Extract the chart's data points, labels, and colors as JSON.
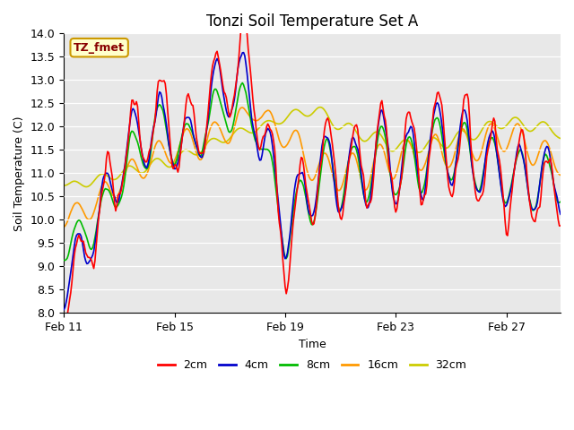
{
  "title": "Tonzi Soil Temperature Set A",
  "xlabel": "Time",
  "ylabel": "Soil Temperature (C)",
  "ylim": [
    8.0,
    14.0
  ],
  "yticks": [
    8.0,
    8.5,
    9.0,
    9.5,
    10.0,
    10.5,
    11.0,
    11.5,
    12.0,
    12.5,
    13.0,
    13.5,
    14.0
  ],
  "xtick_labels": [
    "Feb 11",
    "Feb 15",
    "Feb 19",
    "Feb 23",
    "Feb 27"
  ],
  "xtick_positions": [
    0,
    96,
    192,
    288,
    384
  ],
  "total_points": 432,
  "line_colors": {
    "2cm": "#ff0000",
    "4cm": "#0000cc",
    "8cm": "#00bb00",
    "16cm": "#ff9900",
    "32cm": "#cccc00"
  },
  "line_width": 1.2,
  "legend_labels": [
    "2cm",
    "4cm",
    "8cm",
    "16cm",
    "32cm"
  ],
  "annotation_text": "TZ_fmet",
  "annotation_color": "#880000",
  "annotation_bg": "#ffffcc",
  "annotation_border": "#cc9900",
  "bg_color": "#e8e8e8",
  "title_fontsize": 12,
  "axis_fontsize": 9,
  "legend_fontsize": 9
}
